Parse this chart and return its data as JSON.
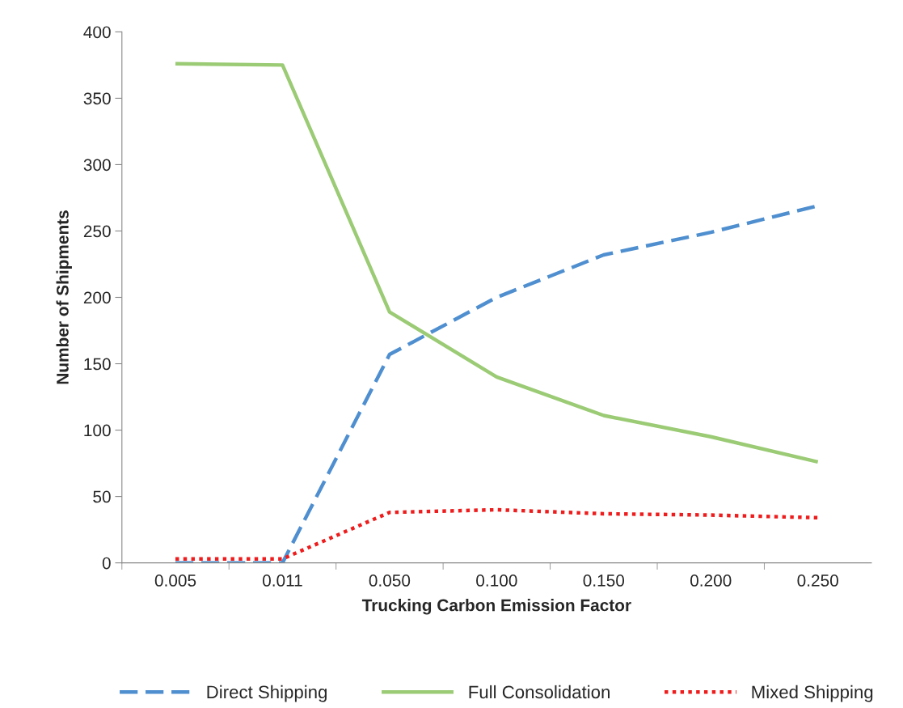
{
  "chart_data": {
    "type": "line",
    "xlabel": "Trucking Carbon Emission Factor",
    "ylabel": "Number of Shipments",
    "categories": [
      "0.005",
      "0.011",
      "0.050",
      "0.100",
      "0.150",
      "0.200",
      "0.250"
    ],
    "ylim": [
      0,
      400
    ],
    "yticks": [
      0,
      50,
      100,
      150,
      200,
      250,
      300,
      350,
      400
    ],
    "grid": false,
    "legend": "bottom",
    "marker": "none",
    "series": [
      {
        "name": "Direct Shipping",
        "color": "#4f8fd0",
        "line_style": "dashed",
        "values": [
          0,
          0,
          157,
          200,
          232,
          249,
          269
        ]
      },
      {
        "name": "Full Consolidation",
        "color": "#9bcb75",
        "line_style": "solid",
        "values": [
          376,
          375,
          189,
          140,
          111,
          95,
          76
        ]
      },
      {
        "name": "Mixed Shipping",
        "color": "#ee1c1c",
        "line_style": "dotted",
        "values": [
          3,
          3,
          38,
          40,
          37,
          36,
          34
        ]
      }
    ]
  }
}
